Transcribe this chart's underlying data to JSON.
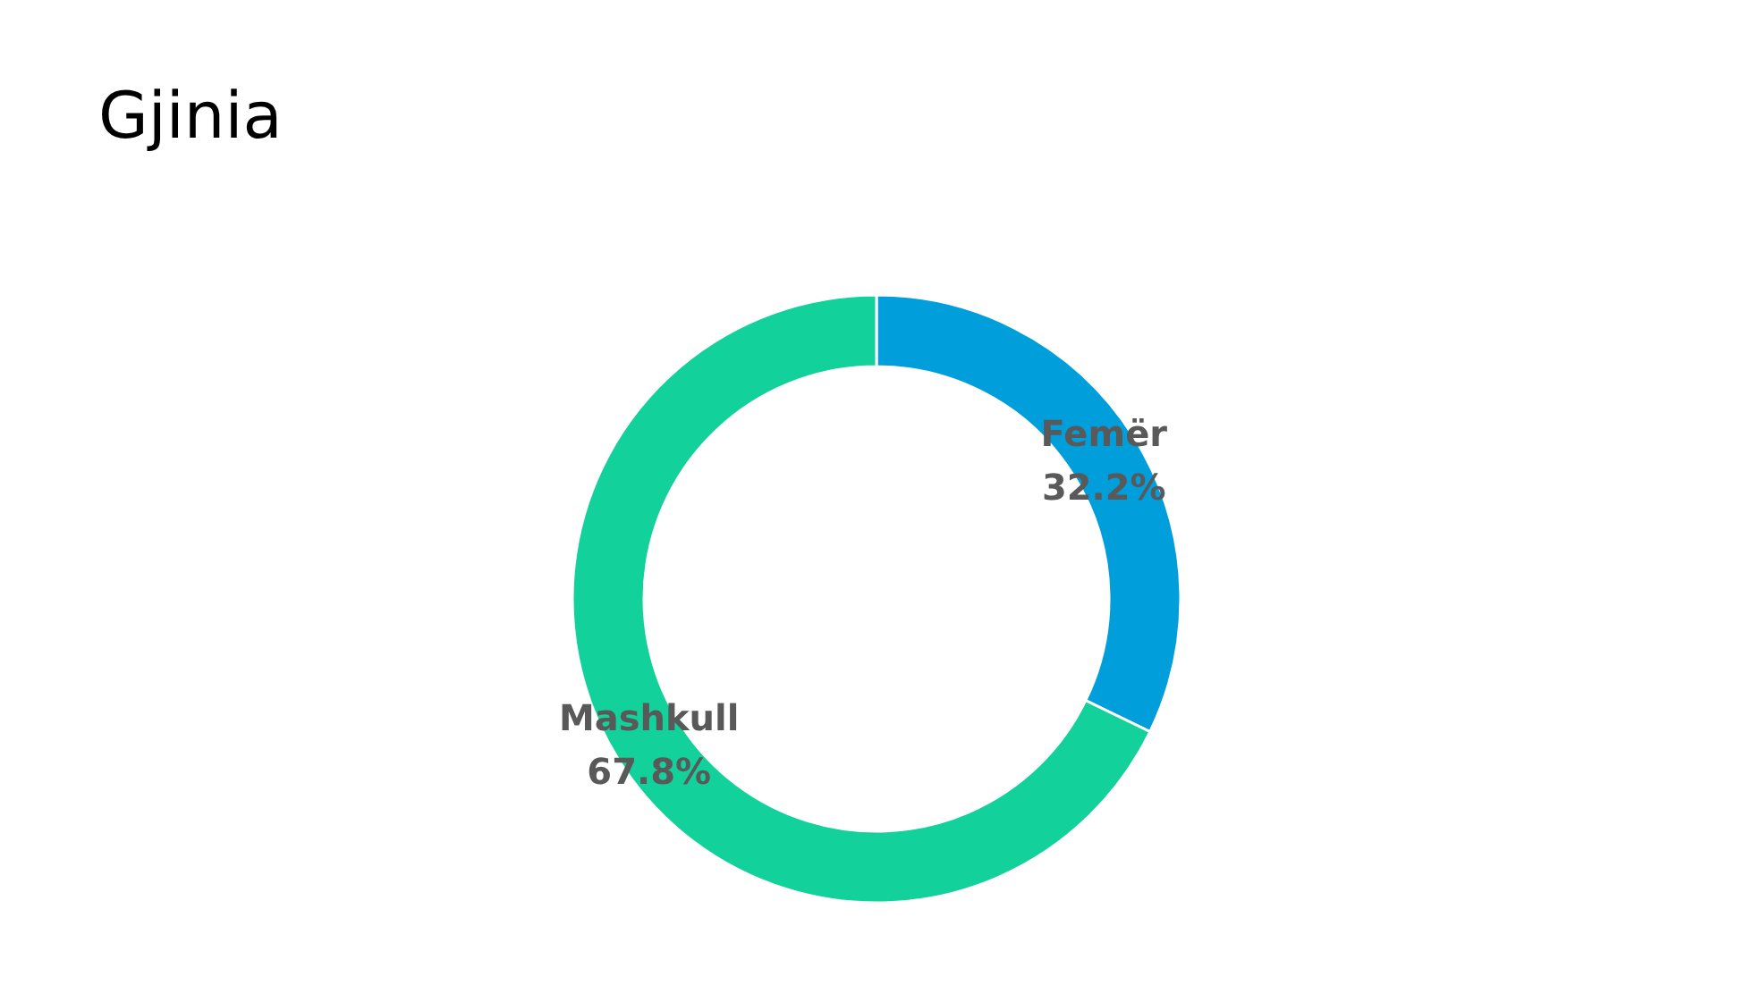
{
  "chart_data": {
    "type": "donut",
    "title": "Gjinia",
    "categories": [
      "Femër",
      "Mashkull"
    ],
    "values": [
      32.2,
      67.8
    ],
    "colors": [
      "#009fdb",
      "#13d19a"
    ],
    "value_labels": [
      "32.2%",
      "67.8%"
    ],
    "legend": false
  }
}
